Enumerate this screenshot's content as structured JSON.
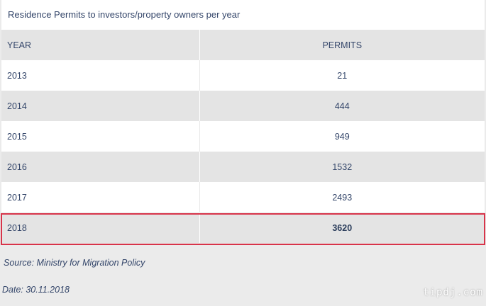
{
  "table": {
    "caption": "Residence Permits to investors/property owners per year",
    "headers": [
      "YEAR",
      "PERMITS"
    ],
    "rows": [
      {
        "year": "2013",
        "permits": "21"
      },
      {
        "year": "2014",
        "permits": "444"
      },
      {
        "year": "2015",
        "permits": "949"
      },
      {
        "year": "2016",
        "permits": "1532"
      },
      {
        "year": "2017",
        "permits": "2493"
      },
      {
        "year": "2018",
        "permits": "3620"
      }
    ],
    "highlight_row": "2018",
    "highlight_color": "#d8344a"
  },
  "footer": {
    "source": "Source: Ministry for Migration Policy",
    "date": "Date: 30.11.2018"
  },
  "watermark": "tipdj.com"
}
